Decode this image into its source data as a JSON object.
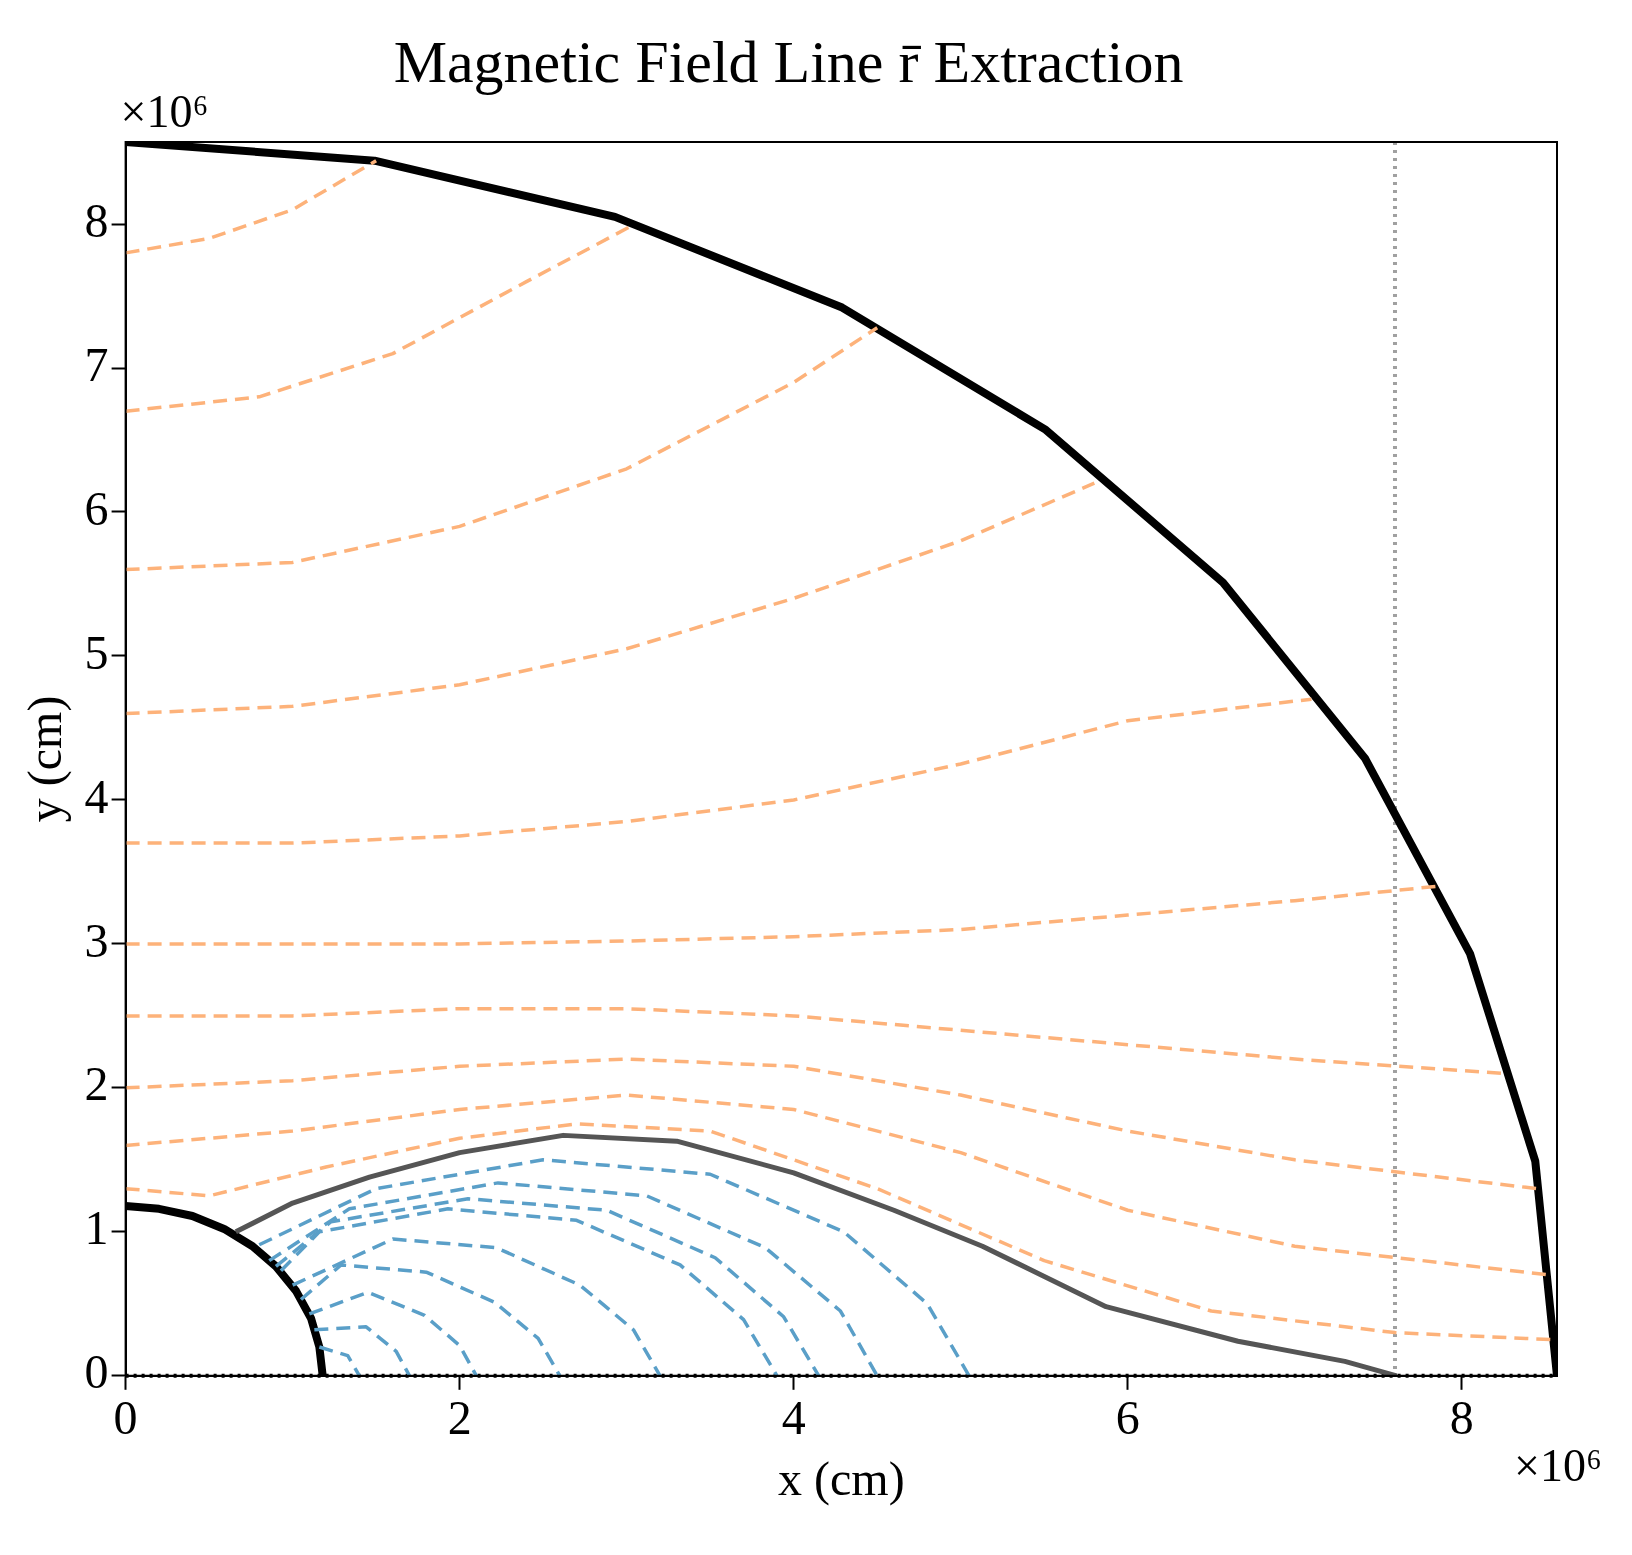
{
  "chart_data": {
    "type": "line",
    "title": "Magnetic Field Line r̄ Extraction",
    "xlabel": "x (cm)",
    "ylabel": "y (cm)",
    "annotations": [
      "×10⁶",
      "×10⁶"
    ],
    "xlim": [
      0,
      8.57
    ],
    "ylim": [
      0,
      8.57
    ],
    "xticks": [
      0,
      2,
      4,
      6,
      8
    ],
    "yticks": [
      0,
      1,
      2,
      3,
      4,
      5,
      6,
      7,
      8
    ],
    "grid": false,
    "legend": false,
    "marker": "none",
    "ref_lines": [
      {
        "axis": "x",
        "value": 7.6,
        "color": "#a0a0a0",
        "line_style": "dotted"
      },
      {
        "axis": "y",
        "value": 0,
        "color": "#000000",
        "line_style": "dotted"
      }
    ],
    "series": [
      {
        "type": "line",
        "color": "#fdb27a",
        "line_style": "dashed",
        "x": [
          0,
          0.5,
          1.2,
          2.0,
          2.7,
          3.5,
          4.5,
          5.5,
          6.5,
          7.6,
          8.56
        ],
        "values": [
          1.3,
          1.25,
          1.45,
          1.65,
          1.75,
          1.7,
          1.3,
          0.8,
          0.45,
          0.3,
          0.25
        ]
      },
      {
        "type": "line",
        "color": "#fdb27a",
        "line_style": "dashed",
        "x": [
          0,
          1.0,
          2.0,
          3.0,
          4.0,
          5.0,
          6.0,
          7.0,
          8.53
        ],
        "values": [
          1.6,
          1.7,
          1.85,
          1.95,
          1.85,
          1.55,
          1.15,
          0.9,
          0.7
        ]
      },
      {
        "type": "line",
        "color": "#fdb27a",
        "line_style": "dashed",
        "x": [
          0,
          1.0,
          2.0,
          3.0,
          4.0,
          5.0,
          6.0,
          7.0,
          8.45
        ],
        "values": [
          2.0,
          2.05,
          2.15,
          2.2,
          2.15,
          1.95,
          1.7,
          1.5,
          1.3
        ]
      },
      {
        "type": "line",
        "color": "#fdb27a",
        "line_style": "dashed",
        "x": [
          0,
          1.0,
          2.0,
          3.0,
          4.0,
          5.0,
          6.0,
          7.0,
          8.25
        ],
        "values": [
          2.5,
          2.5,
          2.55,
          2.55,
          2.5,
          2.4,
          2.3,
          2.2,
          2.1
        ]
      },
      {
        "type": "line",
        "color": "#fdb27a",
        "line_style": "dashed",
        "x": [
          0,
          1.0,
          2.0,
          3.0,
          4.0,
          5.0,
          6.0,
          7.0,
          7.85
        ],
        "values": [
          3.0,
          3.0,
          3.0,
          3.02,
          3.05,
          3.1,
          3.2,
          3.3,
          3.4
        ]
      },
      {
        "type": "line",
        "color": "#fdb27a",
        "line_style": "dashed",
        "x": [
          0,
          1.0,
          2.0,
          3.0,
          4.0,
          5.0,
          6.0,
          7.1
        ],
        "values": [
          3.7,
          3.7,
          3.75,
          3.85,
          4.0,
          4.25,
          4.55,
          4.7
        ]
      },
      {
        "type": "line",
        "color": "#fdb27a",
        "line_style": "dashed",
        "x": [
          0,
          1.0,
          2.0,
          3.0,
          4.0,
          5.0,
          5.8
        ],
        "values": [
          4.6,
          4.65,
          4.8,
          5.05,
          5.4,
          5.8,
          6.2
        ]
      },
      {
        "type": "line",
        "color": "#fdb27a",
        "line_style": "dashed",
        "x": [
          0,
          1.0,
          2.0,
          3.0,
          4.0,
          4.5
        ],
        "values": [
          5.6,
          5.65,
          5.9,
          6.3,
          6.9,
          7.28
        ]
      },
      {
        "type": "line",
        "color": "#fdb27a",
        "line_style": "dashed",
        "x": [
          0,
          0.8,
          1.6,
          2.4,
          3.05
        ],
        "values": [
          6.7,
          6.8,
          7.1,
          7.6,
          8.0
        ]
      },
      {
        "type": "line",
        "color": "#fdb27a",
        "line_style": "dashed",
        "x": [
          0,
          0.5,
          1.0,
          1.5
        ],
        "values": [
          7.8,
          7.9,
          8.1,
          8.44
        ]
      },
      {
        "type": "line",
        "color": "#5a9fc8",
        "line_style": "dashed",
        "x": [
          0.8,
          1.5,
          2.5,
          3.5,
          4.3,
          4.8,
          5.05
        ],
        "values": [
          0.91,
          1.3,
          1.5,
          1.4,
          1.0,
          0.5,
          0
        ]
      },
      {
        "type": "line",
        "color": "#5a9fc8",
        "line_style": "dashed",
        "x": [
          0.86,
          1.34,
          2.23,
          3.12,
          3.83,
          4.28,
          4.5
        ],
        "values": [
          0.8,
          1.16,
          1.34,
          1.25,
          0.89,
          0.45,
          0
        ]
      },
      {
        "type": "line",
        "color": "#5a9fc8",
        "line_style": "dashed",
        "x": [
          0.9,
          1.23,
          2.05,
          2.88,
          3.53,
          3.94,
          4.15
        ],
        "values": [
          0.76,
          1.07,
          1.23,
          1.15,
          0.82,
          0.41,
          0
        ]
      },
      {
        "type": "line",
        "color": "#5a9fc8",
        "line_style": "dashed",
        "x": [
          0.93,
          1.16,
          1.93,
          2.7,
          3.32,
          3.7,
          3.9
        ],
        "values": [
          0.73,
          1.0,
          1.16,
          1.08,
          0.77,
          0.39,
          0
        ]
      },
      {
        "type": "line",
        "color": "#5a9fc8",
        "line_style": "dashed",
        "x": [
          1.0,
          1.6,
          2.22,
          2.72,
          3.04,
          3.2
        ],
        "values": [
          0.63,
          0.95,
          0.89,
          0.63,
          0.32,
          0
        ]
      },
      {
        "type": "line",
        "color": "#5a9fc8",
        "line_style": "dashed",
        "x": [
          1.05,
          1.29,
          1.8,
          2.21,
          2.47,
          2.6
        ],
        "values": [
          0.53,
          0.77,
          0.72,
          0.51,
          0.26,
          0
        ]
      },
      {
        "type": "line",
        "color": "#5a9fc8",
        "line_style": "dashed",
        "x": [
          1.1,
          1.45,
          1.79,
          2.0,
          2.1
        ],
        "values": [
          0.43,
          0.58,
          0.42,
          0.21,
          0
        ]
      },
      {
        "type": "line",
        "color": "#5a9fc8",
        "line_style": "dashed",
        "x": [
          1.13,
          1.44,
          1.62,
          1.7
        ],
        "values": [
          0.32,
          0.34,
          0.17,
          0
        ]
      },
      {
        "type": "line",
        "color": "#5a9fc8",
        "line_style": "dashed",
        "x": [
          1.16,
          1.33,
          1.4
        ],
        "values": [
          0.2,
          0.14,
          0
        ]
      },
      {
        "type": "line",
        "color": "#555555",
        "line_style": "solid",
        "x": [
          0.66,
          1.0,
          1.46,
          2.0,
          2.62,
          3.3,
          4.0,
          4.6,
          5.13,
          5.87,
          6.66,
          7.3,
          7.61
        ],
        "values": [
          1.0,
          1.2,
          1.38,
          1.55,
          1.67,
          1.63,
          1.41,
          1.15,
          0.9,
          0.48,
          0.24,
          0.1,
          0
        ]
      },
      {
        "type": "line",
        "color": "#000000",
        "line_style": "solid",
        "x": [
          8.57,
          8.44,
          8.05,
          7.42,
          6.57,
          5.51,
          4.29,
          2.93,
          1.49,
          0
        ],
        "values": [
          0,
          1.49,
          2.93,
          4.29,
          5.51,
          6.57,
          7.42,
          8.05,
          8.44,
          8.57
        ]
      },
      {
        "type": "line",
        "color": "#000000",
        "line_style": "solid",
        "x": [
          1.18,
          1.16,
          1.11,
          1.02,
          0.9,
          0.76,
          0.59,
          0.4,
          0.2,
          0
        ],
        "values": [
          0,
          0.2,
          0.4,
          0.59,
          0.76,
          0.9,
          1.02,
          1.11,
          1.16,
          1.18
        ]
      }
    ]
  }
}
